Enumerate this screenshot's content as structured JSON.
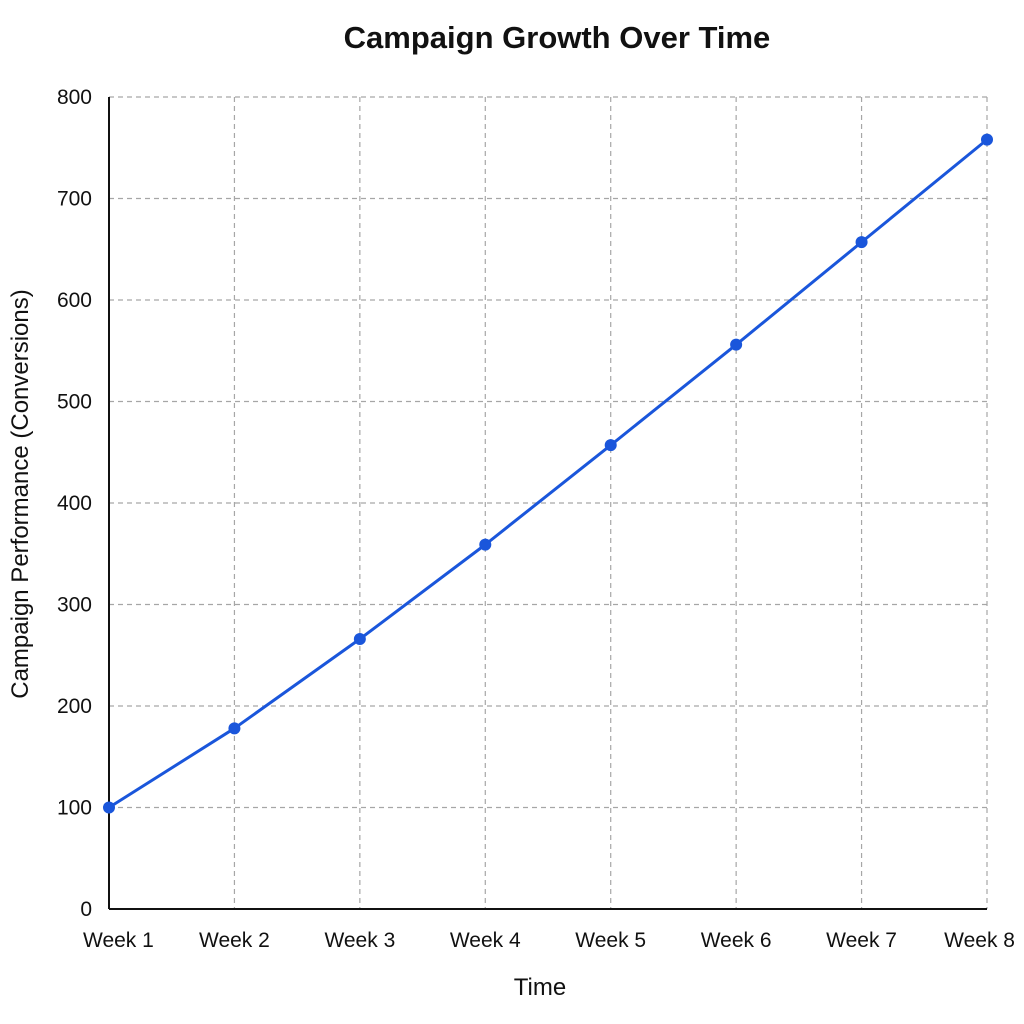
{
  "chart_data": {
    "type": "line",
    "title": "Campaign Growth Over Time",
    "xlabel": "Time",
    "ylabel": "Campaign Performance (Conversions)",
    "categories": [
      "Week 1",
      "Week 2",
      "Week 3",
      "Week 4",
      "Week 5",
      "Week 6",
      "Week 7",
      "Week 8"
    ],
    "series": [
      {
        "values": [
          100,
          178,
          266,
          359,
          457,
          556,
          657,
          758
        ]
      }
    ],
    "ylim": [
      0,
      800
    ],
    "yticks": [
      0,
      100,
      200,
      300,
      400,
      500,
      600,
      700,
      800
    ],
    "grid": true,
    "colors": {
      "line": "#1a56db",
      "grid": "#a6a6a6",
      "axis": "#111111"
    }
  }
}
